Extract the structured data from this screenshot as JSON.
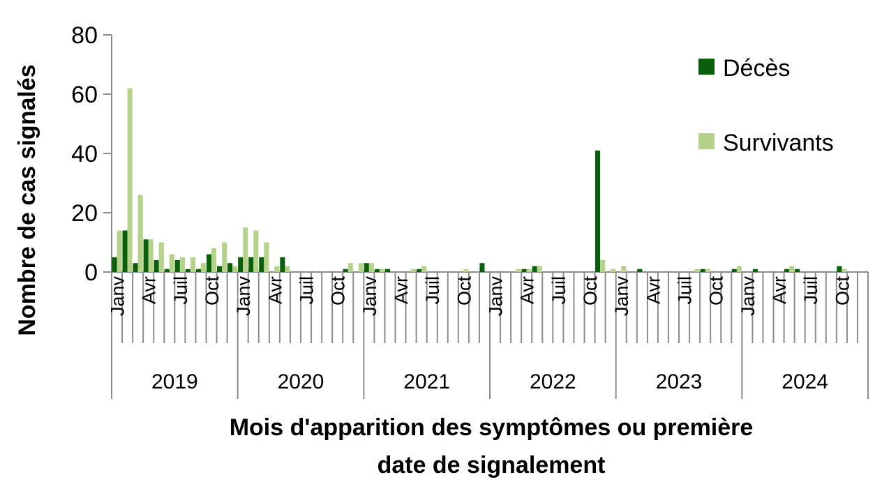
{
  "chart_data": {
    "type": "bar",
    "title": "",
    "ylabel": "Nombre de cas signalés",
    "xlabel_lines": [
      "Mois d'apparition des symptômes ou première",
      "date de signalement"
    ],
    "ylim": [
      0,
      80
    ],
    "yticks": [
      "0",
      "20",
      "40",
      "60",
      "80"
    ],
    "years": [
      "2019",
      "2020",
      "2021",
      "2022",
      "2023",
      "2024"
    ],
    "month_tick_labels": [
      "Janv",
      "Avr",
      "Juil",
      "Oct"
    ],
    "months_per_year": 12,
    "series": [
      {
        "name": "Décès",
        "color": "#0b5e0b",
        "values": [
          5,
          14,
          3,
          11,
          4,
          1,
          4,
          1,
          1,
          6,
          2,
          3,
          5,
          5,
          5,
          0,
          5,
          0,
          0,
          0,
          0,
          0,
          1,
          0,
          3,
          1,
          1,
          0,
          0,
          1,
          0,
          0,
          0,
          0,
          0,
          3,
          0,
          0,
          0,
          1,
          2,
          0,
          0,
          0,
          0,
          0,
          41,
          0,
          0,
          0,
          1,
          0,
          0,
          0,
          0,
          0,
          1,
          0,
          0,
          1,
          0,
          1,
          0,
          0,
          1,
          1,
          0,
          0,
          0,
          2,
          0,
          0
        ]
      },
      {
        "name": "Survivants",
        "color": "#b5d28a",
        "values": [
          14,
          62,
          26,
          11,
          10,
          6,
          5,
          5,
          3,
          8,
          10,
          2,
          15,
          14,
          10,
          2,
          2,
          0,
          0,
          0,
          0,
          0,
          3,
          3,
          3,
          1,
          0,
          0,
          1,
          2,
          0,
          0,
          0,
          1,
          0,
          0,
          0,
          0,
          1,
          1,
          2,
          0,
          0,
          0,
          0,
          0,
          4,
          1,
          2,
          0,
          0,
          0,
          0,
          0,
          0,
          1,
          1,
          0,
          0,
          2,
          0,
          0,
          0,
          0,
          2,
          0,
          0,
          0,
          0,
          1,
          0,
          0
        ]
      }
    ],
    "legend": [
      "Décès",
      "Survivants"
    ],
    "legend_position": "top-right"
  }
}
